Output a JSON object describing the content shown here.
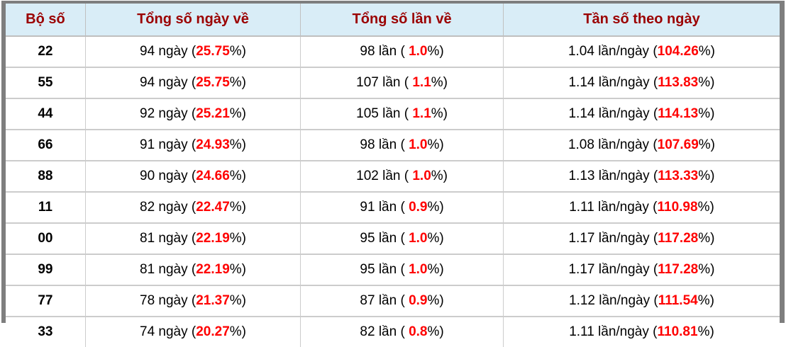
{
  "colors": {
    "header_text": "#9b0000",
    "header_bg": "#d9edf7",
    "highlight_red": "#ff0000",
    "frame_gray": "#7e7e7e",
    "grid_line": "#cccccc"
  },
  "table": {
    "columns": [
      {
        "label": "Bộ số"
      },
      {
        "label": "Tổng số ngày về"
      },
      {
        "label": "Tổng số lần về"
      },
      {
        "label": "Tần số theo ngày"
      }
    ],
    "units": {
      "days": "ngày",
      "times": "lần",
      "freq": "lần/ngày"
    },
    "rows": [
      {
        "pair": "22",
        "days": "94",
        "days_pct": "25.75",
        "times": "98",
        "times_pct": "1.0",
        "freq": "1.04",
        "freq_pct": "104.26"
      },
      {
        "pair": "55",
        "days": "94",
        "days_pct": "25.75",
        "times": "107",
        "times_pct": "1.1",
        "freq": "1.14",
        "freq_pct": "113.83"
      },
      {
        "pair": "44",
        "days": "92",
        "days_pct": "25.21",
        "times": "105",
        "times_pct": "1.1",
        "freq": "1.14",
        "freq_pct": "114.13"
      },
      {
        "pair": "66",
        "days": "91",
        "days_pct": "24.93",
        "times": "98",
        "times_pct": "1.0",
        "freq": "1.08",
        "freq_pct": "107.69"
      },
      {
        "pair": "88",
        "days": "90",
        "days_pct": "24.66",
        "times": "102",
        "times_pct": "1.0",
        "freq": "1.13",
        "freq_pct": "113.33"
      },
      {
        "pair": "11",
        "days": "82",
        "days_pct": "22.47",
        "times": "91",
        "times_pct": "0.9",
        "freq": "1.11",
        "freq_pct": "110.98"
      },
      {
        "pair": "00",
        "days": "81",
        "days_pct": "22.19",
        "times": "95",
        "times_pct": "1.0",
        "freq": "1.17",
        "freq_pct": "117.28"
      },
      {
        "pair": "99",
        "days": "81",
        "days_pct": "22.19",
        "times": "95",
        "times_pct": "1.0",
        "freq": "1.17",
        "freq_pct": "117.28"
      },
      {
        "pair": "77",
        "days": "78",
        "days_pct": "21.37",
        "times": "87",
        "times_pct": "0.9",
        "freq": "1.12",
        "freq_pct": "111.54"
      },
      {
        "pair": "33",
        "days": "74",
        "days_pct": "20.27",
        "times": "82",
        "times_pct": "0.8",
        "freq": "1.11",
        "freq_pct": "110.81"
      }
    ]
  }
}
